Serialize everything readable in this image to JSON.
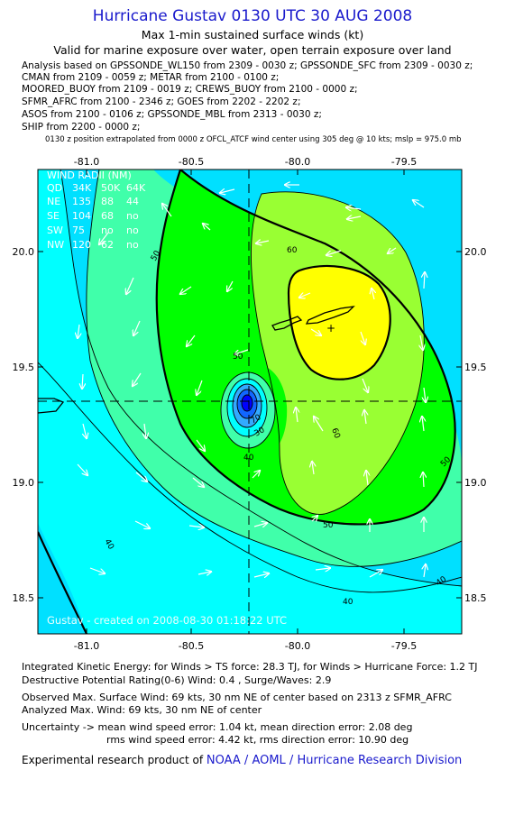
{
  "header": {
    "title": "Hurricane Gustav 0130 UTC 30 AUG 2008",
    "subtitle1": "Max 1-min sustained surface winds (kt)",
    "subtitle2": "Valid for marine exposure over water, open terrain exposure over land",
    "analysis_lines": [
      "Analysis based on  GPSSONDE_WL150 from 2309 - 0030 z;  GPSSONDE_SFC from 2309 - 0030 z;",
      "CMAN from 2109 - 0059 z;  METAR from 2100 - 0100 z;",
      "MOORED_BUOY from 2109 - 0019 z;  CREWS_BUOY from 2100 - 0000 z;",
      "SFMR_AFRC from 2100 - 2346 z;  GOES from 2202 - 2202 z;",
      "ASOS from 2100 - 0106 z;  GPSSONDE_MBL from 2313 - 0030 z;",
      "SHIP from 2200 - 0000 z;"
    ],
    "position_note": "0130 z position extrapolated from 0000 z OFCL_ATCF wind center using 305 deg @ 10 kts; mslp = 975.0 mb"
  },
  "map": {
    "lon_ticks": [
      "-81.0",
      "-80.5",
      "-80.0",
      "-79.5"
    ],
    "lat_ticks": [
      "20.0",
      "19.5",
      "19.0",
      "18.5"
    ],
    "contour_labels": [
      "50",
      "60",
      "50",
      "60",
      "70",
      "30",
      "40",
      "50",
      "50",
      "40",
      "40",
      "40"
    ],
    "credit": "Gustav - created on 2008-08-30 01:18:22 UTC",
    "colors": {
      "cyan": "#00ffff",
      "dark_cyan": "#00e0ff",
      "aquamarine": "#40ffaa",
      "green": "#00ff00",
      "light_green": "#99ff33",
      "yellow": "#ffff00",
      "deep_blue": "#0000ff"
    },
    "wind_radii": {
      "title": "WIND RADII (NM)",
      "header": [
        "QD",
        "34K",
        "50K",
        "64K"
      ],
      "rows": [
        [
          "NE",
          "135",
          "88",
          "44"
        ],
        [
          "SE",
          "104",
          "68",
          "no"
        ],
        [
          "SW",
          "75",
          "no",
          "no"
        ],
        [
          "NW",
          "120",
          "62",
          "no"
        ]
      ]
    }
  },
  "footer": {
    "ike": "Integrated Kinetic Energy:  for Winds > TS force: 28.3 TJ,  for Winds > Hurricane Force: 1.2 TJ",
    "dpr": "Destructive Potential Rating(0-6)   Wind: 0.4 , Surge/Waves: 2.9",
    "observed": "Observed Max. Surface Wind: 69 kts, 30 nm NE of center based on 2313 z SFMR_AFRC",
    "analyzed": "Analyzed Max. Wind: 69 kts, 30 nm NE of center",
    "uncertainty1": "Uncertainty -> mean wind speed error: 1.04 kt,   mean direction error: 2.08 deg",
    "uncertainty2": "rms wind speed error: 4.42 kt,   rms direction error: 10.90 deg",
    "product_prefix": "Experimental research product of ",
    "product_org": "NOAA / AOML / Hurricane Research Division"
  }
}
